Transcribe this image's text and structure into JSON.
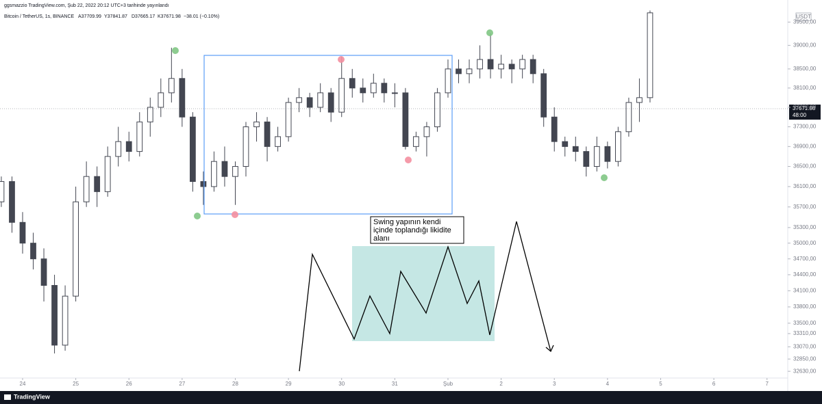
{
  "header": {
    "published": "ggsmazzio TradingView.com, Şub 22, 2022 20:12 UTC+3 tarihinde yayınlandı",
    "symbol": "Bitcoin / TetherUS, 1s, BINANCE",
    "open": "A37709.99",
    "high": "Y37841.87",
    "low": "D37665.17",
    "close": "K37671.98",
    "change": "−38.01 (−0.10%)",
    "currency": "USDT"
  },
  "annotation": {
    "lines": [
      "Swing yapının kendi",
      "içinde toplandığı likidite",
      "alanı"
    ]
  },
  "footer": {
    "brand": "TradingView"
  },
  "chart_data": {
    "type": "candlestick",
    "log_scale": true,
    "grid": false,
    "up_color": "#ffffff",
    "down_color": "#434651",
    "wick_color": "#434651",
    "last_price": 37671.98,
    "countdown": "48:00",
    "xlim": [
      23.575,
      38.39
    ],
    "ylim": [
      32510,
      39980
    ],
    "xticks": [
      24,
      25,
      26,
      27,
      28,
      29,
      30,
      31,
      {
        "value": 32,
        "label": "Şub"
      },
      {
        "value": 33,
        "label": "2"
      },
      {
        "value": 34,
        "label": "3"
      },
      {
        "value": 35,
        "label": "4"
      },
      {
        "value": 36,
        "label": "5"
      },
      {
        "value": 37,
        "label": "6"
      },
      {
        "value": 38,
        "label": "7"
      }
    ],
    "yticks": [
      {
        "value": 39500,
        "label": "39500,00"
      },
      {
        "value": 39000,
        "label": "39000,00"
      },
      {
        "value": 38500,
        "label": "38500,00"
      },
      {
        "value": 38100,
        "label": "38100,00"
      },
      {
        "value": 37700,
        "label": "37700,00"
      },
      {
        "value": 37300,
        "label": "37300,00"
      },
      {
        "value": 36900,
        "label": "36900,00"
      },
      {
        "value": 36500,
        "label": "36500,00"
      },
      {
        "value": 36100,
        "label": "36100,00"
      },
      {
        "value": 35700,
        "label": "35700,00"
      },
      {
        "value": 35300,
        "label": "35300,00"
      },
      {
        "value": 35000,
        "label": "35000,00"
      },
      {
        "value": 34700,
        "label": "34700,00"
      },
      {
        "value": 34400,
        "label": "34400,00"
      },
      {
        "value": 34100,
        "label": "34100,00"
      },
      {
        "value": 33800,
        "label": "33800,00"
      },
      {
        "value": 33500,
        "label": "33500,00"
      },
      {
        "value": 33310,
        "label": "33310,00"
      },
      {
        "value": 33070,
        "label": "33070,00"
      },
      {
        "value": 32850,
        "label": "32850,00"
      },
      {
        "value": 32630,
        "label": "32630,00"
      }
    ],
    "x": [
      23.6,
      23.8,
      24.0,
      24.2,
      24.4,
      24.6,
      24.8,
      25.0,
      25.2,
      25.4,
      25.6,
      25.8,
      26.0,
      26.2,
      26.4,
      26.6,
      26.8,
      27.0,
      27.2,
      27.4,
      27.6,
      27.8,
      28.0,
      28.2,
      28.4,
      28.6,
      28.8,
      29.0,
      29.2,
      29.4,
      29.6,
      29.8,
      30.0,
      30.2,
      30.4,
      30.6,
      30.8,
      31.0,
      31.2,
      31.4,
      31.6,
      31.8,
      32.0,
      32.2,
      32.4,
      32.6,
      32.8,
      33.0,
      33.2,
      33.4,
      33.6,
      33.8,
      34.0,
      34.2,
      34.4,
      34.6,
      34.8,
      35.0,
      35.2,
      35.4,
      35.6,
      35.8
    ],
    "open": [
      35800,
      36200,
      35400,
      35000,
      34700,
      34200,
      33100,
      34000,
      35800,
      36300,
      36000,
      36700,
      37000,
      36800,
      37400,
      37700,
      38000,
      38300,
      37500,
      36200,
      36100,
      36600,
      36300,
      36500,
      37300,
      37400,
      36900,
      37100,
      37800,
      37900,
      37700,
      38000,
      37600,
      38300,
      38100,
      38000,
      38200,
      38000,
      38000,
      36900,
      37100,
      37300,
      38000,
      38500,
      38400,
      38500,
      38700,
      38500,
      38600,
      38500,
      38700,
      38400,
      37500,
      37000,
      36900,
      36800,
      36500,
      36900,
      36600,
      37200,
      37800,
      37900
    ],
    "high": [
      36300,
      36300,
      35600,
      35200,
      34900,
      34400,
      34200,
      36100,
      36600,
      36500,
      36900,
      37300,
      37200,
      37600,
      37900,
      38300,
      38950,
      38500,
      37600,
      36400,
      36800,
      36900,
      36600,
      37400,
      37600,
      37500,
      37300,
      37900,
      38100,
      38000,
      38200,
      38100,
      38760,
      38500,
      38300,
      38400,
      38300,
      38200,
      38100,
      37200,
      37400,
      38100,
      38700,
      38700,
      38700,
      39000,
      39260,
      38800,
      38700,
      38800,
      38800,
      38500,
      37700,
      37100,
      37100,
      36900,
      37100,
      37000,
      37300,
      37900,
      38300,
      39750
    ],
    "low": [
      35700,
      35200,
      34800,
      34500,
      33900,
      32950,
      33000,
      33900,
      35700,
      35700,
      35900,
      36500,
      36600,
      36700,
      37100,
      37500,
      37800,
      37300,
      36000,
      35740,
      36000,
      36100,
      35740,
      36300,
      37000,
      36600,
      36800,
      37000,
      37600,
      37500,
      37600,
      37400,
      37500,
      37900,
      37800,
      37900,
      37800,
      37700,
      36840,
      36800,
      36700,
      37200,
      37900,
      38200,
      38200,
      38300,
      38300,
      38300,
      38200,
      38300,
      38200,
      37300,
      36800,
      36700,
      36600,
      36300,
      36400,
      36460,
      36500,
      37100,
      37400,
      37800
    ],
    "close": [
      36200,
      35400,
      35000,
      34700,
      34200,
      33100,
      34000,
      35800,
      36300,
      36000,
      36700,
      37000,
      36800,
      37400,
      37700,
      38000,
      38300,
      37500,
      36200,
      36100,
      36600,
      36300,
      36500,
      37300,
      37400,
      36900,
      37100,
      37800,
      37900,
      37700,
      38000,
      37600,
      38300,
      38100,
      38000,
      38200,
      38000,
      38000,
      36900,
      37100,
      37300,
      38000,
      38500,
      38400,
      38500,
      38700,
      38500,
      38600,
      38500,
      38700,
      38400,
      37500,
      37000,
      36900,
      36800,
      36500,
      36900,
      36600,
      37200,
      37800,
      37900,
      39700
    ]
  }
}
